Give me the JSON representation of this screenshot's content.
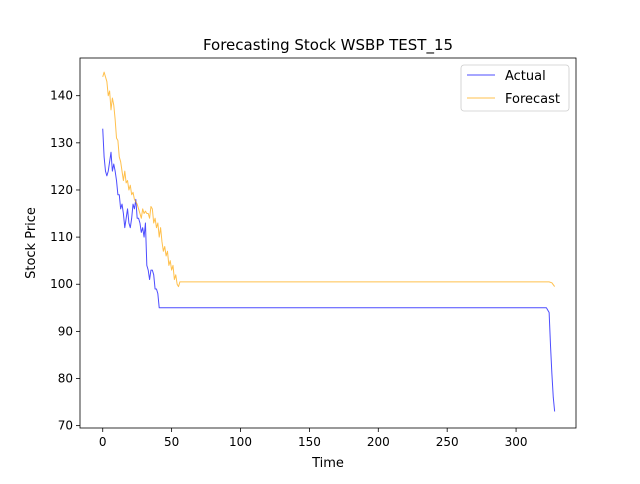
{
  "chart_data": {
    "type": "line",
    "title": "Forecasting Stock WSBP TEST_15",
    "xlabel": "Time",
    "ylabel": "Stock Price",
    "xlim": [
      -16.5,
      343.5
    ],
    "ylim": [
      69.5,
      148.0
    ],
    "xticks": [
      0,
      50,
      100,
      150,
      200,
      250,
      300
    ],
    "yticks": [
      70,
      80,
      90,
      100,
      110,
      120,
      130,
      140
    ],
    "grid": false,
    "legend_position": "top-right",
    "series": [
      {
        "name": "Actual",
        "color": "#0000ff",
        "points": [
          [
            0,
            133
          ],
          [
            1,
            127
          ],
          [
            2,
            124
          ],
          [
            3,
            123
          ],
          [
            4,
            124
          ],
          [
            5,
            126
          ],
          [
            6,
            128
          ],
          [
            7,
            124
          ],
          [
            8,
            125.5
          ],
          [
            9,
            124
          ],
          [
            10,
            122
          ],
          [
            11,
            119
          ],
          [
            12,
            119
          ],
          [
            13,
            116
          ],
          [
            14,
            117
          ],
          [
            15,
            115
          ],
          [
            16,
            112
          ],
          [
            17,
            114
          ],
          [
            18,
            116
          ],
          [
            19,
            113
          ],
          [
            20,
            112
          ],
          [
            21,
            114
          ],
          [
            22,
            117
          ],
          [
            23,
            116
          ],
          [
            24,
            118
          ],
          [
            25,
            114
          ],
          [
            26,
            114
          ],
          [
            27,
            113
          ],
          [
            28,
            111
          ],
          [
            29,
            112
          ],
          [
            30,
            110
          ],
          [
            31,
            113
          ],
          [
            32,
            104
          ],
          [
            33,
            103
          ],
          [
            34,
            101
          ],
          [
            35,
            103
          ],
          [
            36,
            103
          ],
          [
            37,
            102
          ],
          [
            38,
            99
          ],
          [
            39,
            99
          ],
          [
            40,
            98
          ],
          [
            41,
            95
          ],
          [
            42,
            95
          ],
          [
            60,
            95
          ],
          [
            100,
            95
          ],
          [
            150,
            95
          ],
          [
            200,
            95
          ],
          [
            250,
            95
          ],
          [
            300,
            95
          ],
          [
            322,
            95
          ],
          [
            324,
            94
          ],
          [
            325,
            87
          ],
          [
            326,
            81
          ],
          [
            327,
            76
          ],
          [
            328,
            73
          ]
        ]
      },
      {
        "name": "Forecast",
        "color": "#ffa500",
        "points": [
          [
            0,
            144
          ],
          [
            1,
            145
          ],
          [
            2,
            144
          ],
          [
            3,
            143
          ],
          [
            4,
            140
          ],
          [
            5,
            141
          ],
          [
            6,
            137
          ],
          [
            7,
            139.5
          ],
          [
            8,
            138
          ],
          [
            9,
            135
          ],
          [
            10,
            131
          ],
          [
            11,
            130.5
          ],
          [
            12,
            127
          ],
          [
            13,
            126
          ],
          [
            14,
            124
          ],
          [
            15,
            122
          ],
          [
            16,
            124
          ],
          [
            17,
            121.5
          ],
          [
            18,
            122
          ],
          [
            19,
            120
          ],
          [
            20,
            121
          ],
          [
            21,
            119
          ],
          [
            22,
            119.5
          ],
          [
            23,
            118
          ],
          [
            24,
            117.5
          ],
          [
            25,
            117
          ],
          [
            26,
            116
          ],
          [
            27,
            115
          ],
          [
            28,
            114
          ],
          [
            29,
            116
          ],
          [
            30,
            115
          ],
          [
            31,
            115.5
          ],
          [
            32,
            115
          ],
          [
            33,
            115
          ],
          [
            34,
            114
          ],
          [
            35,
            116.5
          ],
          [
            36,
            116
          ],
          [
            37,
            113
          ],
          [
            38,
            114
          ],
          [
            39,
            112
          ],
          [
            40,
            113
          ],
          [
            41,
            110
          ],
          [
            42,
            112
          ],
          [
            43,
            109
          ],
          [
            44,
            107
          ],
          [
            45,
            108
          ],
          [
            46,
            106
          ],
          [
            47,
            107
          ],
          [
            48,
            104
          ],
          [
            49,
            105
          ],
          [
            50,
            103
          ],
          [
            51,
            104
          ],
          [
            52,
            101
          ],
          [
            53,
            102
          ],
          [
            54,
            100
          ],
          [
            55,
            99.5
          ],
          [
            56,
            100.5
          ],
          [
            60,
            100.5
          ],
          [
            100,
            100.5
          ],
          [
            150,
            100.5
          ],
          [
            200,
            100.5
          ],
          [
            250,
            100.5
          ],
          [
            300,
            100.5
          ],
          [
            324,
            100.5
          ],
          [
            326,
            100.3
          ],
          [
            328,
            99.5
          ]
        ]
      }
    ]
  }
}
